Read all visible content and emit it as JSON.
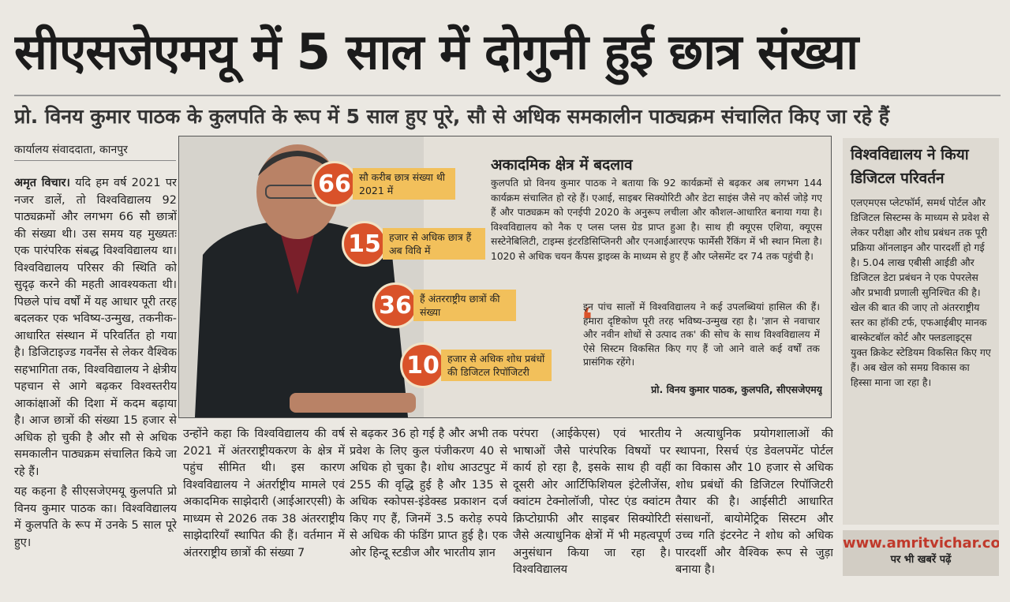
{
  "header": {
    "title": "सीएसजेएमयू में 5 साल में दोगुनी हुई छात्र संख्या",
    "subtitle": "प्रो. विनय कुमार पाठक के कुलपति के रूप में 5 साल हुए पूरे, सौ से अधिक समकालीन पाठ्यक्रम संचालित किए जा रहे हैं",
    "byline": "कार्यालय संवाददाता, कानपुर"
  },
  "stats": [
    {
      "number": 66,
      "label": "सौ करीब छात्र संख्या थी 2021 में"
    },
    {
      "number": 15,
      "label": "हजार से अधिक छात्र हैं अब विवि में"
    },
    {
      "number": 36,
      "label": "हैं अंतरराष्ट्रीय छात्रों की संख्या"
    },
    {
      "number": 10,
      "label": "हजार से अधिक शोध प्रबंधों की डिजिटल रिपॉजिटरी"
    }
  ],
  "academic": {
    "heading": "अकादमिक क्षेत्र में बदलाव",
    "text": "कुलपति प्रो विनय कुमार पाठक ने बताया कि 92 कार्यक्रमों से बढ़कर अब लगभग 144 कार्यक्रम संचालित हो रहे हैं। एआई, साइबर सिक्योरिटी और डेटा साइंस जैसे नए कोर्स जोड़े गए हैं और पाठ्यक्रम को एनईपी 2020 के अनुरूप लचीला और कौशल-आधारित बनाया गया है। विश्वविद्यालय को नैक ए प्लस प्लस ग्रेड प्राप्त हुआ है। साथ ही क्यूएस एशिया, क्यूएस सस्टेनेबिलिटी, टाइम्स इंटरडिसिप्लिनरी और एनआईआरएफ फार्मेसी रैंकिंग में भी स्थान मिला है। 1020 से अधिक चयन कैंपस ड्राइव्स के माध्यम से हुए हैं और प्लेसमेंट दर 74 तक पहुंची है।"
  },
  "quote": {
    "text": "इन पांच सालों में विश्वविद्यालय ने कई उपलब्धियां हासिल की हैं। हमारा दृष्टिकोण पूरी तरह भविष्य-उन्मुख रहा है। 'ज्ञान से नवाचार और नवीन शोधों से उत्पाद तक' की सोच के साथ विश्वविद्यालय में ऐसे सिस्टम विकसित किए गए हैं जो आने वाले कई वर्षों तक प्रासंगिक रहेंगे।",
    "attribution": "प्रो. विनय कुमार पाठक, कुलपति, सीएसजेएमयू"
  },
  "body": {
    "lead": "अमृत विचार।",
    "paragraphs": [
      "यदि हम वर्ष 2021 पर नजर डालें, तो विश्वविद्यालय 92 पाठ्यक्रमों और लगभग 66 सौ छात्रों की संख्या थी। उस समय यह मुख्यतः एक पारंपरिक संबद्ध विश्वविद्यालय था। विश्वविद्यालय परिसर की स्थिति को सुदृढ़ करने की महती आवश्यकता थी। पिछले पांच वर्षों में यह आधार पूरी तरह बदलकर एक भविष्य-उन्मुख, तकनीक-आधारित संस्थान में परिवर्तित हो गया है। डिजिटाइज्ड गवर्नेंस से लेकर वैश्विक सहभागिता तक, विश्वविद्यालय ने क्षेत्रीय पहचान से आगे बढ़कर विश्वस्तरीय आकांक्षाओं की दिशा में कदम बढ़ाया है। आज छात्रों की संख्या 15 हजार से अधिक हो चुकी है और सौ से अधिक समकालीन पाठ्यक्रम संचालित किये जा रहे हैं।",
      "यह कहना है सीएसजेएमयू कुलपति प्रो विनय कुमार पाठक का। विश्वविद्यालय में कुलपति के रूप में उनके 5 साल पूरे हुए।",
      "उन्होंने कहा कि विश्वविद्यालय की वर्ष 2021 में अंतरराष्ट्रीयकरण के क्षेत्र में पहुंच सीमित थी। इस कारण विश्वविद्यालय ने अंतर्राष्ट्रीय मामले एवं अकादमिक साझेदारी (आईआरएसी) के माध्यम से 2026 तक 38 अंतरराष्ट्रीय साझेदारियाँ स्थापित की हैं। वर्तमान में अंतरराष्ट्रीय छात्रों की संख्या 7",
      "से बढ़कर 36 हो गई है और अभी तक प्रवेश के लिए कुल पंजीकरण 40 से अधिक हो चुका है। शोध आउटपुट में 255 की वृद्धि हुई है और 135 से अधिक स्कोपस-इंडेक्स्ड प्रकाशन दर्ज किए गए हैं, जिनमें 3.5 करोड़ रुपये से अधिक की फंडिंग प्राप्त हुई है। एक ओर हिन्दू स्टडीज और भारतीय ज्ञान",
      "परंपरा (आईकेएस) एवं भारतीय भाषाओं जैसे पारंपरिक विषयों पर कार्य हो रहा है, इसके साथ ही वहीं दूसरी ओर आर्टिफिशियल इंटेलीजेंस, क्वांटम टेक्नोलॉजी, पोस्ट एंड क्वांटम क्रिप्टोग्राफी और साइबर सिक्योरिटी जैसे अत्याधुनिक क्षेत्रों में भी महत्वपूर्ण अनुसंधान किया जा रहा है। विश्वविद्यालय",
      "ने अत्याधुनिक प्रयोगशालाओं की स्थापना, रिसर्च एंड डेवलपमेंट पोर्टल का विकास और 10 हजार से अधिक शोध प्रबंधों की डिजिटल रिपॉजिटरी तैयार की है। आईसीटी आधारित संसाधनों, बायोमेट्रिक सिस्टम और उच्च गति इंटरनेट ने शोध को अधिक पारदर्शी और वैश्विक रूप से जुड़ा बनाया है।"
    ]
  },
  "sidebar": {
    "title": "विश्वविद्यालय ने किया डिजिटल परिवर्तन",
    "text": "एलएमएस प्लेटफॉर्म, समर्थ पोर्टल और डिजिटल सिस्टम्स के माध्यम से प्रवेश से लेकर परीक्षा और शोध प्रबंधन तक पूरी प्रक्रिया ऑनलाइन और पारदर्शी हो गई है। 5.04 लाख एबीसी आईडी और डिजिटल डेटा प्रबंधन ने एक पेपरलेस और प्रभावी प्रणाली सुनिश्चित की है। खेल की बात की जाए तो अंतरराष्ट्रीय स्तर का हॉकी टर्फ, एफआईबीए मानक बास्केटबॉल कोर्ट और फ्लडलाइट्स युक्त क्रिकेट स्टेडियम विकसित किए गए हैं। अब खेल को समग्र विकास का हिस्सा माना जा रहा है।",
    "website": "www.amritvichar.com",
    "website_note": "पर भी खबरें पढ़ें"
  }
}
